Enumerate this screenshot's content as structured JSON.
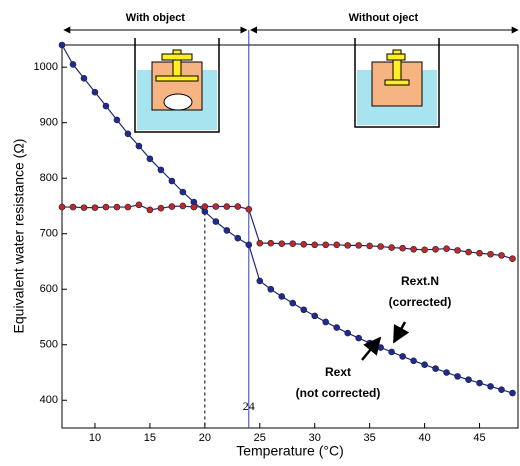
{
  "chart_data": {
    "type": "line",
    "xlabel": "Temperature (°C)",
    "ylabel": "Equivalent water resistance (Ω)",
    "xlim": [
      7,
      48.5
    ],
    "ylim": [
      350,
      1040
    ],
    "xticks": [
      10,
      15,
      20,
      25,
      30,
      35,
      40,
      45
    ],
    "yticks": [
      400,
      500,
      600,
      700,
      800,
      900,
      1000
    ],
    "line_color": "#1f2a7a",
    "x": [
      7,
      8,
      9,
      10,
      11,
      12,
      13,
      14,
      15,
      16,
      17,
      18,
      19,
      20,
      21,
      22,
      23,
      24,
      25,
      26,
      27,
      28,
      29,
      30,
      31,
      32,
      33,
      34,
      35,
      36,
      37,
      38,
      39,
      40,
      41,
      42,
      43,
      44,
      45,
      46,
      47,
      48
    ],
    "series": [
      {
        "name": "Rext",
        "color": "#1f2a9a",
        "values": [
          1040,
          1005,
          980,
          955,
          930,
          905,
          880,
          858,
          835,
          815,
          795,
          775,
          757,
          740,
          722,
          706,
          692,
          680,
          615,
          600,
          587,
          575,
          563,
          552,
          541,
          531,
          521,
          512,
          503,
          495,
          487,
          479,
          471,
          464,
          457,
          450,
          443,
          437,
          431,
          425,
          419,
          413
        ]
      },
      {
        "name": "Rext.N",
        "color": "#c0282a",
        "values": [
          748,
          748,
          747,
          747,
          748,
          748,
          748,
          752,
          743,
          746,
          749,
          750,
          748,
          749,
          749,
          749,
          749,
          744,
          683,
          683,
          682,
          682,
          681,
          680,
          680,
          680,
          679,
          679,
          678,
          677,
          675,
          674,
          672,
          671,
          672,
          673,
          670,
          667,
          665,
          663,
          661,
          655
        ]
      }
    ],
    "vline": {
      "value": 24,
      "label": "24"
    },
    "dashed_x": 20,
    "header": {
      "left": "With object",
      "right": "Without oject"
    },
    "annotations": [
      {
        "lines": [
          "Rext.N",
          "(corrected)"
        ],
        "series": 1
      },
      {
        "lines": [
          "Rext",
          "(not corrected)"
        ],
        "series": 0
      }
    ]
  }
}
